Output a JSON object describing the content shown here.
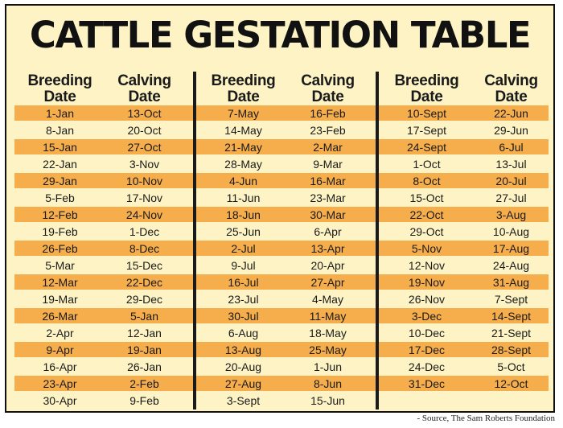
{
  "title": "CATTLE GESTATION TABLE",
  "source": "- Source, The Sam Roberts Foundation",
  "colors": {
    "background": "#fdf3c4",
    "stripe": "#f6ad4c",
    "ink": "#1a1a1a"
  },
  "headers": {
    "breeding_line1": "Breeding",
    "breeding_line2": "Date",
    "calving_line1": "Calving",
    "calving_line2": "Date"
  },
  "groups": [
    {
      "rows": [
        {
          "breeding": "1-Jan",
          "calving": "13-Oct"
        },
        {
          "breeding": "8-Jan",
          "calving": "20-Oct"
        },
        {
          "breeding": "15-Jan",
          "calving": "27-Oct"
        },
        {
          "breeding": "22-Jan",
          "calving": "3-Nov"
        },
        {
          "breeding": "29-Jan",
          "calving": "10-Nov"
        },
        {
          "breeding": "5-Feb",
          "calving": "17-Nov"
        },
        {
          "breeding": "12-Feb",
          "calving": "24-Nov"
        },
        {
          "breeding": "19-Feb",
          "calving": "1-Dec"
        },
        {
          "breeding": "26-Feb",
          "calving": "8-Dec"
        },
        {
          "breeding": "5-Mar",
          "calving": "15-Dec"
        },
        {
          "breeding": "12-Mar",
          "calving": "22-Dec"
        },
        {
          "breeding": "19-Mar",
          "calving": "29-Dec"
        },
        {
          "breeding": "26-Mar",
          "calving": "5-Jan"
        },
        {
          "breeding": "2-Apr",
          "calving": "12-Jan"
        },
        {
          "breeding": "9-Apr",
          "calving": "19-Jan"
        },
        {
          "breeding": "16-Apr",
          "calving": "26-Jan"
        },
        {
          "breeding": "23-Apr",
          "calving": "2-Feb"
        },
        {
          "breeding": "30-Apr",
          "calving": "9-Feb"
        }
      ]
    },
    {
      "rows": [
        {
          "breeding": "7-May",
          "calving": "16-Feb"
        },
        {
          "breeding": "14-May",
          "calving": "23-Feb"
        },
        {
          "breeding": "21-May",
          "calving": "2-Mar"
        },
        {
          "breeding": "28-May",
          "calving": "9-Mar"
        },
        {
          "breeding": "4-Jun",
          "calving": "16-Mar"
        },
        {
          "breeding": "11-Jun",
          "calving": "23-Mar"
        },
        {
          "breeding": "18-Jun",
          "calving": "30-Mar"
        },
        {
          "breeding": "25-Jun",
          "calving": "6-Apr"
        },
        {
          "breeding": "2-Jul",
          "calving": "13-Apr"
        },
        {
          "breeding": "9-Jul",
          "calving": "20-Apr"
        },
        {
          "breeding": "16-Jul",
          "calving": "27-Apr"
        },
        {
          "breeding": "23-Jul",
          "calving": "4-May"
        },
        {
          "breeding": "30-Jul",
          "calving": "11-May"
        },
        {
          "breeding": "6-Aug",
          "calving": "18-May"
        },
        {
          "breeding": "13-Aug",
          "calving": "25-May"
        },
        {
          "breeding": "20-Aug",
          "calving": "1-Jun"
        },
        {
          "breeding": "27-Aug",
          "calving": "8-Jun"
        },
        {
          "breeding": "3-Sept",
          "calving": "15-Jun"
        }
      ]
    },
    {
      "rows": [
        {
          "breeding": "10-Sept",
          "calving": "22-Jun"
        },
        {
          "breeding": "17-Sept",
          "calving": "29-Jun"
        },
        {
          "breeding": "24-Sept",
          "calving": "6-Jul"
        },
        {
          "breeding": "1-Oct",
          "calving": "13-Jul"
        },
        {
          "breeding": "8-Oct",
          "calving": "20-Jul"
        },
        {
          "breeding": "15-Oct",
          "calving": "27-Jul"
        },
        {
          "breeding": "22-Oct",
          "calving": "3-Aug"
        },
        {
          "breeding": "29-Oct",
          "calving": "10-Aug"
        },
        {
          "breeding": "5-Nov",
          "calving": "17-Aug"
        },
        {
          "breeding": "12-Nov",
          "calving": "24-Aug"
        },
        {
          "breeding": "19-Nov",
          "calving": "31-Aug"
        },
        {
          "breeding": "26-Nov",
          "calving": "7-Sept"
        },
        {
          "breeding": "3-Dec",
          "calving": "14-Sept"
        },
        {
          "breeding": "10-Dec",
          "calving": "21-Sept"
        },
        {
          "breeding": "17-Dec",
          "calving": "28-Sept"
        },
        {
          "breeding": "24-Dec",
          "calving": "5-Oct"
        },
        {
          "breeding": "31-Dec",
          "calving": "12-Oct"
        }
      ]
    }
  ]
}
